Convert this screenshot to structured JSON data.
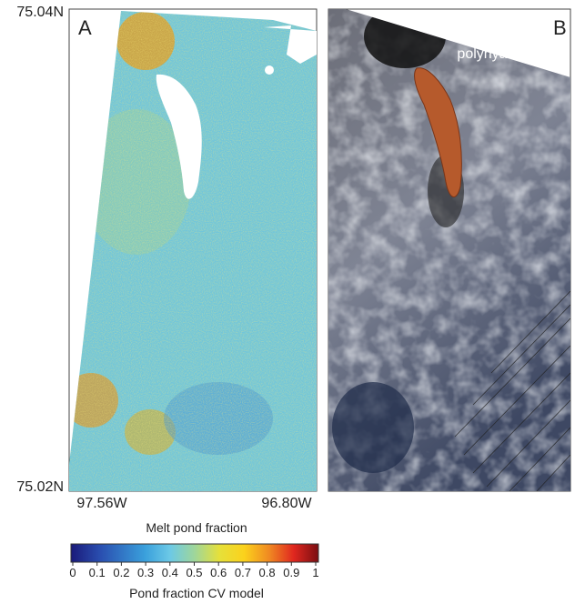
{
  "panels": [
    {
      "label": "A",
      "lat_labels": [
        "75.04N",
        "75.02N"
      ],
      "lon_labels": [
        "97.56W",
        "96.80W"
      ],
      "caption": "Melt pond fraction"
    },
    {
      "label": "B",
      "annotation": "polynya"
    }
  ],
  "colorbar": {
    "lim": [
      0,
      1
    ],
    "ticks": [
      0,
      0.1,
      0.2,
      0.3,
      0.4,
      0.5,
      0.6,
      0.7,
      0.8,
      0.9,
      1
    ],
    "label": "Pond fraction CV model"
  }
}
